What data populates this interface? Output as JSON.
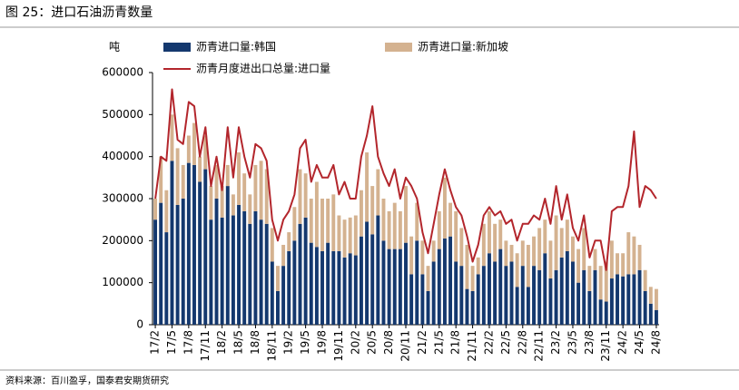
{
  "chart_data": {
    "type": "bar",
    "stacked": true,
    "title": "图 25：进口石油沥青数量",
    "y_label": "吨",
    "source": "资料来源：百川盈孚，国泰君安期货研究",
    "categories": [
      "17/2",
      null,
      null,
      "17/5",
      null,
      null,
      "17/8",
      null,
      null,
      "17/11",
      null,
      null,
      "18/2",
      null,
      null,
      "18/5",
      null,
      null,
      "18/8",
      null,
      null,
      "18/11",
      null,
      null,
      "19/2",
      null,
      null,
      "19/5",
      null,
      null,
      "19/8",
      null,
      null,
      "19/11",
      null,
      null,
      "20/2",
      null,
      null,
      "20/5",
      null,
      null,
      "20/8",
      null,
      null,
      "20/11",
      null,
      null,
      "21/2",
      null,
      null,
      "21/5",
      null,
      null,
      "21/8",
      null,
      null,
      "21/11",
      null,
      null,
      "22/2",
      null,
      null,
      "22/5",
      null,
      null,
      "22/8",
      null,
      null,
      "22/11",
      null,
      null,
      "23/2",
      null,
      null,
      "23/5",
      null,
      null,
      "23/8",
      null,
      null,
      "23/11",
      null,
      null,
      "24/2",
      null,
      null,
      "24/5",
      null,
      null,
      "24/8"
    ],
    "series": [
      {
        "name": "沥青进口量:韩国",
        "color": "#14386e",
        "values": [
          250000,
          290000,
          220000,
          390000,
          285000,
          300000,
          385000,
          380000,
          340000,
          370000,
          250000,
          300000,
          255000,
          330000,
          260000,
          285000,
          270000,
          240000,
          270000,
          250000,
          240000,
          150000,
          80000,
          140000,
          175000,
          200000,
          240000,
          255000,
          195000,
          185000,
          175000,
          195000,
          175000,
          175000,
          160000,
          170000,
          165000,
          210000,
          245000,
          215000,
          260000,
          200000,
          180000,
          180000,
          180000,
          195000,
          120000,
          200000,
          120000,
          80000,
          150000,
          180000,
          205000,
          210000,
          150000,
          140000,
          85000,
          80000,
          120000,
          140000,
          170000,
          150000,
          180000,
          140000,
          150000,
          90000,
          140000,
          90000,
          140000,
          130000,
          170000,
          110000,
          130000,
          160000,
          175000,
          150000,
          100000,
          130000,
          80000,
          130000,
          60000,
          55000,
          110000,
          120000,
          115000,
          120000,
          120000,
          130000,
          80000,
          50000,
          35000
        ]
      },
      {
        "name": "沥青进口量:新加坡",
        "color": "#d4b290",
        "values": [
          50000,
          110000,
          100000,
          110000,
          135000,
          80000,
          65000,
          100000,
          60000,
          80000,
          80000,
          80000,
          75000,
          50000,
          50000,
          125000,
          90000,
          70000,
          110000,
          140000,
          130000,
          80000,
          60000,
          50000,
          45000,
          80000,
          130000,
          105000,
          105000,
          155000,
          125000,
          105000,
          135000,
          85000,
          90000,
          85000,
          95000,
          110000,
          165000,
          115000,
          110000,
          100000,
          90000,
          110000,
          90000,
          135000,
          90000,
          90000,
          80000,
          60000,
          50000,
          90000,
          145000,
          80000,
          120000,
          90000,
          105000,
          60000,
          40000,
          100000,
          100000,
          90000,
          70000,
          60000,
          40000,
          80000,
          60000,
          100000,
          70000,
          100000,
          80000,
          90000,
          130000,
          70000,
          75000,
          60000,
          80000,
          100000,
          60000,
          50000,
          80000,
          95000,
          90000,
          50000,
          55000,
          100000,
          90000,
          60000,
          50000,
          40000,
          50000
        ]
      },
      {
        "name": "沥青月度进出口总量:进口量",
        "type": "line",
        "color": "#b3262c",
        "values": [
          300000,
          400000,
          390000,
          560000,
          440000,
          430000,
          530000,
          520000,
          400000,
          470000,
          330000,
          400000,
          320000,
          470000,
          350000,
          470000,
          400000,
          350000,
          430000,
          420000,
          390000,
          250000,
          200000,
          250000,
          270000,
          310000,
          420000,
          440000,
          340000,
          380000,
          350000,
          350000,
          380000,
          310000,
          340000,
          300000,
          300000,
          400000,
          450000,
          520000,
          400000,
          360000,
          330000,
          370000,
          300000,
          350000,
          330000,
          300000,
          220000,
          170000,
          240000,
          310000,
          370000,
          320000,
          280000,
          260000,
          210000,
          150000,
          190000,
          260000,
          280000,
          260000,
          270000,
          240000,
          250000,
          200000,
          240000,
          240000,
          260000,
          250000,
          300000,
          240000,
          330000,
          250000,
          310000,
          230000,
          200000,
          260000,
          160000,
          200000,
          200000,
          130000,
          270000,
          280000,
          280000,
          330000,
          460000,
          280000,
          330000,
          320000,
          300000
        ]
      }
    ],
    "ylim": [
      0,
      600000
    ],
    "yticks": [
      0,
      100000,
      200000,
      300000,
      400000,
      500000,
      600000
    ]
  }
}
